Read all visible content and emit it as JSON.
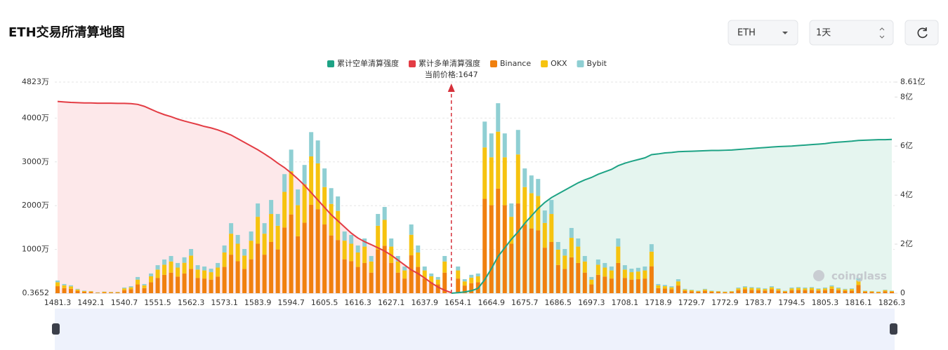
{
  "chart_data": {
    "type": "bar",
    "title": "ETH交易所清算地图",
    "controls": {
      "coin": "ETH",
      "period": "1天"
    },
    "annotation": "当前价格:1647",
    "watermark": "coinglass",
    "grid": true,
    "legend": "top",
    "categories": [
      "1481.3",
      null,
      null,
      null,
      null,
      "1492.1",
      null,
      null,
      null,
      null,
      "1540.7",
      null,
      null,
      null,
      null,
      "1551.5",
      null,
      null,
      null,
      null,
      "1562.3",
      null,
      null,
      null,
      null,
      "1573.1",
      null,
      null,
      null,
      null,
      "1583.9",
      null,
      null,
      null,
      null,
      "1594.7",
      null,
      null,
      null,
      null,
      "1605.5",
      null,
      null,
      null,
      null,
      "1616.3",
      null,
      null,
      null,
      null,
      "1627.1",
      null,
      null,
      null,
      null,
      "1637.9",
      null,
      null,
      null,
      null,
      "1654.1",
      null,
      null,
      null,
      null,
      "1664.9",
      null,
      null,
      null,
      null,
      "1675.7",
      null,
      null,
      null,
      null,
      "1686.5",
      null,
      null,
      null,
      null,
      "1697.3",
      null,
      null,
      null,
      null,
      "1708.1",
      null,
      null,
      null,
      null,
      "1718.9",
      null,
      null,
      null,
      null,
      "1729.7",
      null,
      null,
      null,
      null,
      "1772.9",
      null,
      null,
      null,
      null,
      "1783.7",
      null,
      null,
      null,
      null,
      "1794.5",
      null,
      null,
      null,
      null,
      "1805.3",
      null,
      null,
      null,
      null,
      "1816.1",
      null,
      null,
      null,
      null,
      "1826.3"
    ],
    "ylim": [
      0.3652,
      4823
    ],
    "yticks": [
      0.3652,
      {
        "value": 1000,
        "label": "1000万"
      },
      {
        "value": 2000,
        "label": "2000万"
      },
      {
        "value": 3000,
        "label": "3000万"
      },
      {
        "value": 4000,
        "label": "4000万"
      },
      {
        "value": 4823,
        "label": "4823万"
      }
    ],
    "yticks_labels_fix": null,
    "y2lim": [
      0,
      8.61
    ],
    "y2ticks": [
      0,
      {
        "value": 2,
        "label": "2亿"
      },
      {
        "value": 4,
        "label": "4亿"
      },
      {
        "value": 6,
        "label": "6亿"
      },
      {
        "value": 8,
        "label": "8亿"
      },
      {
        "value": 8.61,
        "label": "8.61亿"
      }
    ],
    "series": [
      {
        "name": "累计空单清算强度",
        "type": "line",
        "axis": "y2",
        "color": "#1ea385",
        "fill": "#e5f5ef",
        "values": [
          null,
          null,
          null,
          null,
          null,
          null,
          null,
          null,
          null,
          null,
          null,
          null,
          null,
          null,
          null,
          null,
          null,
          null,
          null,
          null,
          null,
          null,
          null,
          null,
          null,
          null,
          null,
          null,
          null,
          null,
          null,
          null,
          null,
          null,
          null,
          null,
          null,
          null,
          null,
          null,
          null,
          null,
          null,
          null,
          null,
          null,
          null,
          null,
          null,
          null,
          null,
          null,
          null,
          null,
          null,
          null,
          null,
          null,
          null,
          0,
          0.02,
          0.05,
          0.1,
          0.2,
          0.55,
          1.0,
          1.5,
          1.85,
          2.2,
          2.5,
          2.85,
          3.15,
          3.45,
          3.7,
          3.9,
          4.05,
          4.2,
          4.35,
          4.5,
          4.62,
          4.72,
          4.85,
          4.95,
          5.05,
          5.2,
          5.3,
          5.38,
          5.45,
          5.52,
          5.65,
          5.68,
          5.72,
          5.74,
          5.77,
          5.78,
          5.79,
          5.8,
          5.81,
          5.82,
          5.82,
          5.83,
          5.84,
          5.86,
          5.88,
          5.9,
          5.92,
          5.94,
          5.96,
          5.98,
          5.99,
          6.0,
          6.02,
          6.04,
          6.06,
          6.08,
          6.1,
          6.14,
          6.16,
          6.18,
          6.2,
          6.23,
          6.24,
          6.25,
          6.26,
          6.26,
          6.27
        ]
      },
      {
        "name": "累计多单清算强度",
        "type": "line",
        "axis": "y2",
        "color": "#e33c44",
        "fill": "#fde8ea",
        "values": [
          7.82,
          7.8,
          7.78,
          7.77,
          7.76,
          7.76,
          7.75,
          7.75,
          7.75,
          7.74,
          7.74,
          7.73,
          7.7,
          7.62,
          7.5,
          7.38,
          7.28,
          7.2,
          7.1,
          7.02,
          6.95,
          6.88,
          6.8,
          6.74,
          6.66,
          6.56,
          6.45,
          6.3,
          6.15,
          6.0,
          5.85,
          5.68,
          5.5,
          5.3,
          5.12,
          4.9,
          4.66,
          4.4,
          4.1,
          3.8,
          3.5,
          3.2,
          2.95,
          2.7,
          2.45,
          2.25,
          2.1,
          1.98,
          1.85,
          1.72,
          1.55,
          1.35,
          1.15,
          0.95,
          0.8,
          0.62,
          0.42,
          0.25,
          0.12,
          0.02,
          null,
          null,
          null,
          null,
          null,
          null,
          null,
          null,
          null,
          null,
          null,
          null,
          null,
          null,
          null,
          null,
          null,
          null,
          null,
          null,
          null,
          null,
          null,
          null,
          null,
          null,
          null,
          null,
          null,
          null,
          null,
          null,
          null,
          null,
          null,
          null,
          null,
          null,
          null,
          null,
          null,
          null,
          null,
          null,
          null,
          null,
          null,
          null,
          null,
          null,
          null,
          null,
          null,
          null,
          null,
          null,
          null,
          null,
          null,
          null,
          null,
          null,
          null,
          null,
          null,
          null
        ]
      },
      {
        "name": "Binance",
        "type": "bar",
        "color": "#f0800f",
        "values": [
          160,
          115,
          100,
          55,
          35,
          30,
          10,
          20,
          15,
          15,
          70,
          90,
          200,
          115,
          250,
          350,
          420,
          470,
          380,
          450,
          555,
          350,
          335,
          310,
          380,
          600,
          880,
          730,
          555,
          775,
          1130,
          880,
          1170,
          1000,
          1500,
          1800,
          1300,
          1610,
          2020,
          1920,
          1570,
          1320,
          1215,
          775,
          730,
          600,
          690,
          470,
          1000,
          1085,
          690,
          470,
          335,
          865,
          600,
          335,
          250,
          200,
          470,
          0,
          335,
          175,
          230,
          250,
          2155,
          2010,
          2390,
          2010,
          1130,
          2050,
          1570,
          1480,
          1435,
          1040,
          1170,
          645,
          555,
          820,
          690,
          470,
          200,
          420,
          380,
          335,
          690,
          350,
          310,
          320,
          335,
          615,
          115,
          105,
          90,
          175,
          55,
          45,
          35,
          55,
          35,
          30,
          20,
          30,
          70,
          90,
          75,
          70,
          60,
          90,
          60,
          35,
          70,
          75,
          70,
          75,
          60,
          70,
          100,
          70,
          55,
          60,
          190,
          35,
          30,
          20,
          45,
          35
        ]
      },
      {
        "name": "OKX",
        "type": "bar",
        "color": "#f6c30f",
        "values": [
          90,
          65,
          55,
          30,
          15,
          15,
          5,
          15,
          10,
          10,
          40,
          45,
          110,
          65,
          135,
          190,
          230,
          255,
          205,
          245,
          305,
          190,
          185,
          170,
          205,
          330,
          480,
          400,
          305,
          425,
          615,
          480,
          640,
          540,
          815,
          985,
          710,
          880,
          1105,
          1045,
          855,
          720,
          665,
          425,
          400,
          330,
          375,
          255,
          540,
          590,
          375,
          255,
          185,
          470,
          330,
          185,
          135,
          110,
          255,
          0,
          185,
          95,
          125,
          135,
          1175,
          1095,
          1300,
          1095,
          615,
          1120,
          855,
          805,
          785,
          565,
          640,
          350,
          305,
          445,
          375,
          255,
          110,
          230,
          205,
          185,
          375,
          190,
          170,
          175,
          185,
          335,
          65,
          55,
          45,
          95,
          30,
          25,
          15,
          30,
          15,
          15,
          15,
          15,
          40,
          45,
          45,
          40,
          35,
          45,
          35,
          15,
          40,
          45,
          40,
          45,
          35,
          40,
          55,
          40,
          30,
          35,
          105,
          15,
          15,
          15,
          25,
          15
        ]
      },
      {
        "name": "Bybit",
        "type": "bar",
        "color": "#8fcfd3",
        "values": [
          40,
          30,
          25,
          15,
          10,
          5,
          5,
          5,
          5,
          5,
          20,
          25,
          60,
          30,
          65,
          100,
          120,
          125,
          105,
          125,
          150,
          100,
          90,
          80,
          105,
          160,
          240,
          200,
          150,
          210,
          305,
          240,
          320,
          270,
          405,
          495,
          360,
          440,
          555,
          525,
          425,
          360,
          330,
          210,
          200,
          160,
          185,
          125,
          270,
          295,
          185,
          125,
          90,
          235,
          160,
          90,
          65,
          60,
          125,
          0,
          90,
          50,
          65,
          65,
          590,
          545,
          650,
          545,
          305,
          560,
          425,
          405,
          390,
          285,
          320,
          175,
          150,
          225,
          185,
          125,
          60,
          120,
          105,
          90,
          185,
          100,
          80,
          85,
          90,
          170,
          30,
          30,
          25,
          50,
          15,
          10,
          10,
          15,
          10,
          5,
          5,
          5,
          20,
          25,
          20,
          20,
          15,
          25,
          15,
          10,
          20,
          20,
          20,
          20,
          15,
          20,
          25,
          20,
          15,
          15,
          55,
          10,
          5,
          5,
          10,
          10
        ]
      }
    ]
  }
}
